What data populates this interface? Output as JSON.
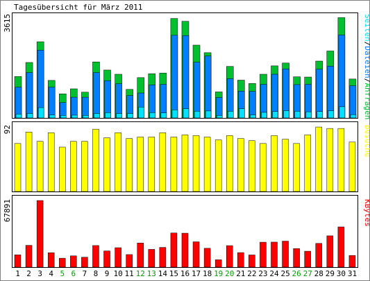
{
  "title": "Tagesübersicht für März 2011",
  "colors": {
    "background": "#ffffff",
    "panel_border": "#000000",
    "frame": "#808080",
    "anfragen": "#00c030",
    "dateien": "#0080ff",
    "seiten": "#00e0ff",
    "besuche": "#ffff00",
    "kbytes": "#ff0000",
    "weekend_label": "#00a000",
    "weekday_label": "#000000"
  },
  "chart_data": [
    {
      "type": "bar",
      "title": "Tagesübersicht für März 2011",
      "categories": [
        "1",
        "2",
        "3",
        "4",
        "5",
        "6",
        "7",
        "8",
        "9",
        "10",
        "11",
        "12",
        "13",
        "14",
        "15",
        "16",
        "17",
        "18",
        "19",
        "20",
        "21",
        "22",
        "23",
        "24",
        "25",
        "26",
        "27",
        "28",
        "29",
        "30",
        "31"
      ],
      "weekend_days": [
        "5",
        "6",
        "12",
        "13",
        "19",
        "20",
        "26",
        "27"
      ],
      "ylabel": "3615",
      "ylim": [
        0,
        3615
      ],
      "legend_labels": [
        "Seiten",
        "Dateien",
        "Anfragen"
      ],
      "legend_separator": "/",
      "series": [
        {
          "name": "Anfragen",
          "values": [
            1480,
            1980,
            2720,
            1340,
            860,
            1040,
            920,
            2000,
            1710,
            1560,
            1020,
            1440,
            1580,
            1600,
            3550,
            3450,
            2600,
            2330,
            930,
            1840,
            1350,
            1230,
            1560,
            1860,
            1960,
            1470,
            1460,
            2030,
            2390,
            3580,
            1390
          ]
        },
        {
          "name": "Dateien",
          "values": [
            1100,
            1620,
            2420,
            1100,
            550,
            740,
            740,
            1620,
            1330,
            1220,
            800,
            890,
            1180,
            1200,
            2950,
            2940,
            1990,
            2210,
            730,
            1400,
            960,
            950,
            1200,
            1560,
            1750,
            1190,
            1200,
            1740,
            1850,
            2960,
            1150
          ]
        },
        {
          "name": "Seiten",
          "values": [
            140,
            160,
            370,
            110,
            90,
            100,
            90,
            160,
            190,
            160,
            160,
            390,
            190,
            180,
            290,
            330,
            240,
            250,
            90,
            240,
            330,
            110,
            200,
            230,
            260,
            240,
            220,
            230,
            260,
            400,
            120
          ]
        }
      ]
    },
    {
      "type": "bar",
      "categories": [
        "1",
        "2",
        "3",
        "4",
        "5",
        "6",
        "7",
        "8",
        "9",
        "10",
        "11",
        "12",
        "13",
        "14",
        "15",
        "16",
        "17",
        "18",
        "19",
        "20",
        "21",
        "22",
        "23",
        "24",
        "25",
        "26",
        "27",
        "28",
        "29",
        "30",
        "31"
      ],
      "ylabel": "92",
      "ylim": [
        0,
        92
      ],
      "legend_labels": [
        "Besuche"
      ],
      "series": [
        {
          "name": "Besuche",
          "values": [
            67,
            83,
            70,
            82,
            62,
            70,
            70,
            87,
            75,
            82,
            74,
            76,
            76,
            82,
            76,
            79,
            78,
            76,
            72,
            78,
            74,
            71,
            67,
            78,
            73,
            67,
            79,
            90,
            88,
            88,
            69
          ]
        }
      ]
    },
    {
      "type": "bar",
      "categories": [
        "1",
        "2",
        "3",
        "4",
        "5",
        "6",
        "7",
        "8",
        "9",
        "10",
        "11",
        "12",
        "13",
        "14",
        "15",
        "16",
        "17",
        "18",
        "19",
        "20",
        "21",
        "22",
        "23",
        "24",
        "25",
        "26",
        "27",
        "28",
        "29",
        "30",
        "31"
      ],
      "ylabel": "67891",
      "ylim": [
        0,
        67891
      ],
      "legend_labels": [
        "KBytes"
      ],
      "series": [
        {
          "name": "KBytes",
          "values": [
            12500,
            22200,
            67891,
            14700,
            9100,
            11500,
            10100,
            22000,
            16500,
            19800,
            12800,
            24600,
            18100,
            20100,
            34800,
            34600,
            25800,
            19200,
            7500,
            21900,
            14800,
            12400,
            25400,
            25500,
            26500,
            18900,
            16200,
            24200,
            31900,
            41000,
            11900
          ]
        }
      ]
    }
  ]
}
